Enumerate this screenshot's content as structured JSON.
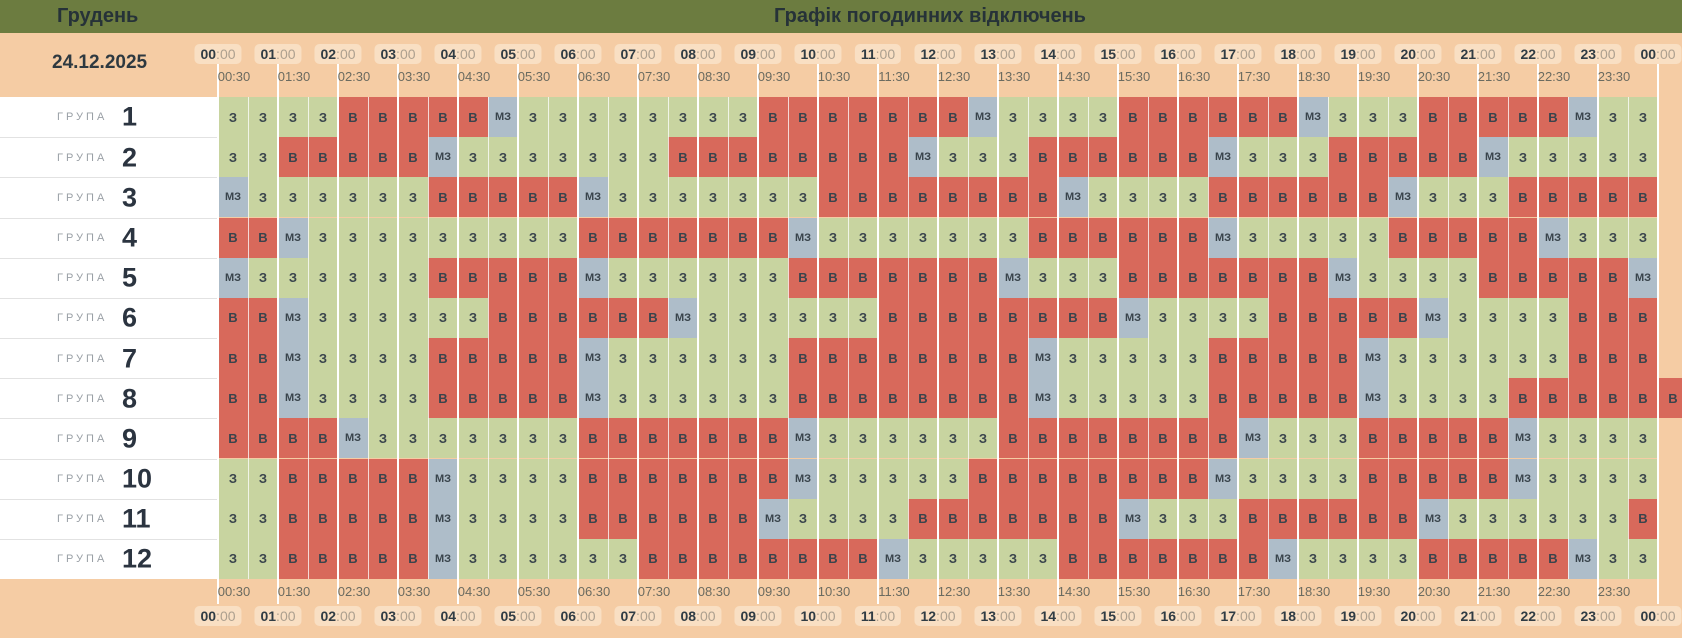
{
  "header": {
    "month": "Грудень",
    "title": "Графік погодинних відключень",
    "date": "24.12.2025"
  },
  "legend": {
    "on": "З",
    "off": "В",
    "maybe": "МЗ"
  },
  "colors": {
    "on": "#C8D4A0",
    "off": "#D8695B",
    "maybe": "#AEBDC9",
    "topbar": "#6C7C40",
    "band": "#F5CCA4",
    "pill": "#F9DFC3"
  },
  "timeline": {
    "hours": [
      "00",
      "01",
      "02",
      "03",
      "04",
      "05",
      "06",
      "07",
      "08",
      "09",
      "10",
      "11",
      "12",
      "13",
      "14",
      "15",
      "16",
      "17",
      "18",
      "19",
      "20",
      "21",
      "22",
      "23",
      "00"
    ],
    "hour_suffix": ":00",
    "half_hours": [
      "00:30",
      "01:30",
      "02:30",
      "03:30",
      "04:30",
      "05:30",
      "06:30",
      "07:30",
      "08:30",
      "09:30",
      "10:30",
      "11:30",
      "12:30",
      "13:30",
      "14:30",
      "15:30",
      "16:30",
      "17:30",
      "18:30",
      "19:30",
      "20:30",
      "21:30",
      "22:30",
      "23:30"
    ]
  },
  "group_word": "ГРУПА",
  "groups": [
    {
      "number": "1",
      "cells": [
        "З",
        "З",
        "З",
        "З",
        "В",
        "В",
        "В",
        "В",
        "В",
        "МЗ",
        "З",
        "З",
        "З",
        "З",
        "З",
        "З",
        "З",
        "З",
        "В",
        "В",
        "В",
        "В",
        "В",
        "В",
        "В",
        "МЗ",
        "З",
        "З",
        "З",
        "З",
        "В",
        "В",
        "В",
        "В",
        "В",
        "В",
        "МЗ",
        "З",
        "З",
        "З",
        "В",
        "В",
        "В",
        "В",
        "В",
        "МЗ",
        "З",
        "З"
      ]
    },
    {
      "number": "2",
      "cells": [
        "З",
        "З",
        "В",
        "В",
        "В",
        "В",
        "В",
        "МЗ",
        "З",
        "З",
        "З",
        "З",
        "З",
        "З",
        "З",
        "В",
        "В",
        "В",
        "В",
        "В",
        "В",
        "В",
        "В",
        "МЗ",
        "З",
        "З",
        "З",
        "В",
        "В",
        "В",
        "В",
        "В",
        "В",
        "МЗ",
        "З",
        "З",
        "З",
        "В",
        "В",
        "В",
        "В",
        "В",
        "МЗ",
        "З",
        "З",
        "З",
        "З",
        "З"
      ]
    },
    {
      "number": "3",
      "cells": [
        "МЗ",
        "З",
        "З",
        "З",
        "З",
        "З",
        "З",
        "В",
        "В",
        "В",
        "В",
        "В",
        "МЗ",
        "З",
        "З",
        "З",
        "З",
        "З",
        "З",
        "З",
        "В",
        "В",
        "В",
        "В",
        "В",
        "В",
        "В",
        "В",
        "МЗ",
        "З",
        "З",
        "З",
        "З",
        "В",
        "В",
        "В",
        "В",
        "В",
        "В",
        "МЗ",
        "З",
        "З",
        "З",
        "В",
        "В",
        "В",
        "В",
        "В"
      ]
    },
    {
      "number": "4",
      "cells": [
        "В",
        "В",
        "МЗ",
        "З",
        "З",
        "З",
        "З",
        "З",
        "З",
        "З",
        "З",
        "З",
        "В",
        "В",
        "В",
        "В",
        "В",
        "В",
        "В",
        "МЗ",
        "З",
        "З",
        "З",
        "З",
        "З",
        "З",
        "З",
        "В",
        "В",
        "В",
        "В",
        "В",
        "В",
        "МЗ",
        "З",
        "З",
        "З",
        "З",
        "З",
        "В",
        "В",
        "В",
        "В",
        "В",
        "МЗ",
        "З",
        "З",
        "З"
      ]
    },
    {
      "number": "5",
      "cells": [
        "МЗ",
        "З",
        "З",
        "З",
        "З",
        "З",
        "З",
        "В",
        "В",
        "В",
        "В",
        "В",
        "МЗ",
        "З",
        "З",
        "З",
        "З",
        "З",
        "З",
        "В",
        "В",
        "В",
        "В",
        "В",
        "В",
        "В",
        "МЗ",
        "З",
        "З",
        "З",
        "В",
        "В",
        "В",
        "В",
        "В",
        "В",
        "В",
        "МЗ",
        "З",
        "З",
        "З",
        "З",
        "В",
        "В",
        "В",
        "В",
        "В",
        "МЗ"
      ]
    },
    {
      "number": "6",
      "cells": [
        "В",
        "В",
        "МЗ",
        "З",
        "З",
        "З",
        "З",
        "З",
        "З",
        "В",
        "В",
        "В",
        "В",
        "В",
        "В",
        "МЗ",
        "З",
        "З",
        "З",
        "З",
        "З",
        "З",
        "В",
        "В",
        "В",
        "В",
        "В",
        "В",
        "В",
        "В",
        "МЗ",
        "З",
        "З",
        "З",
        "З",
        "В",
        "В",
        "В",
        "В",
        "В",
        "МЗ",
        "З",
        "З",
        "З",
        "З",
        "В",
        "В",
        "В"
      ]
    },
    {
      "number": "7",
      "cells": [
        "В",
        "В",
        "МЗ",
        "З",
        "З",
        "З",
        "З",
        "В",
        "В",
        "В",
        "В",
        "В",
        "МЗ",
        "З",
        "З",
        "З",
        "З",
        "З",
        "З",
        "В",
        "В",
        "В",
        "В",
        "В",
        "В",
        "В",
        "В",
        "МЗ",
        "З",
        "З",
        "З",
        "З",
        "З",
        "В",
        "В",
        "В",
        "В",
        "В",
        "МЗ",
        "З",
        "З",
        "З",
        "З",
        "З",
        "З",
        "В",
        "В",
        "В"
      ]
    },
    {
      "number": "8",
      "cells": [
        "В",
        "В",
        "МЗ",
        "З",
        "З",
        "З",
        "З",
        "В",
        "В",
        "В",
        "В",
        "В",
        "МЗ",
        "З",
        "З",
        "З",
        "З",
        "З",
        "З",
        "В",
        "В",
        "В",
        "В",
        "В",
        "В",
        "В",
        "В",
        "МЗ",
        "З",
        "З",
        "З",
        "З",
        "З",
        "В",
        "В",
        "В",
        "В",
        "В",
        "МЗ",
        "З",
        "З",
        "З",
        "З",
        "В",
        "В",
        "В",
        "В",
        "В",
        "В"
      ]
    },
    {
      "number": "9",
      "cells": [
        "В",
        "В",
        "В",
        "В",
        "МЗ",
        "З",
        "З",
        "З",
        "З",
        "З",
        "З",
        "З",
        "В",
        "В",
        "В",
        "В",
        "В",
        "В",
        "В",
        "МЗ",
        "З",
        "З",
        "З",
        "З",
        "З",
        "З",
        "В",
        "В",
        "В",
        "В",
        "В",
        "В",
        "В",
        "В",
        "МЗ",
        "З",
        "З",
        "З",
        "В",
        "В",
        "В",
        "В",
        "В",
        "МЗ",
        "З",
        "З",
        "З",
        "З"
      ]
    },
    {
      "number": "10",
      "cells": [
        "З",
        "З",
        "В",
        "В",
        "В",
        "В",
        "В",
        "МЗ",
        "З",
        "З",
        "З",
        "З",
        "В",
        "В",
        "В",
        "В",
        "В",
        "В",
        "В",
        "МЗ",
        "З",
        "З",
        "З",
        "З",
        "З",
        "В",
        "В",
        "В",
        "В",
        "В",
        "В",
        "В",
        "В",
        "МЗ",
        "З",
        "З",
        "З",
        "З",
        "В",
        "В",
        "В",
        "В",
        "В",
        "МЗ",
        "З",
        "З",
        "З",
        "З"
      ]
    },
    {
      "number": "11",
      "cells": [
        "З",
        "З",
        "В",
        "В",
        "В",
        "В",
        "В",
        "МЗ",
        "З",
        "З",
        "З",
        "З",
        "В",
        "В",
        "В",
        "В",
        "В",
        "В",
        "МЗ",
        "З",
        "З",
        "З",
        "З",
        "В",
        "В",
        "В",
        "В",
        "В",
        "В",
        "В",
        "МЗ",
        "З",
        "З",
        "З",
        "В",
        "В",
        "В",
        "В",
        "В",
        "В",
        "МЗ",
        "З",
        "З",
        "З",
        "З",
        "З",
        "З",
        "В"
      ]
    },
    {
      "number": "12",
      "cells": [
        "З",
        "З",
        "В",
        "В",
        "В",
        "В",
        "В",
        "МЗ",
        "З",
        "З",
        "З",
        "З",
        "З",
        "З",
        "В",
        "В",
        "В",
        "В",
        "В",
        "В",
        "В",
        "В",
        "МЗ",
        "З",
        "З",
        "З",
        "З",
        "З",
        "В",
        "В",
        "В",
        "В",
        "В",
        "В",
        "В",
        "МЗ",
        "З",
        "З",
        "З",
        "З",
        "В",
        "В",
        "В",
        "В",
        "В",
        "МЗ",
        "З",
        "З"
      ]
    }
  ]
}
